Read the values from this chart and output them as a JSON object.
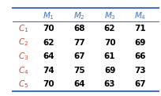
{
  "col_headers": [
    "$M_1$",
    "$M_2$",
    "$M_3$",
    "$M_4$"
  ],
  "row_headers": [
    "$C_1$",
    "$C_2$",
    "$C_3$",
    "$C_4$",
    "$C_5$"
  ],
  "table_data": [
    [
      70,
      68,
      62,
      71
    ],
    [
      62,
      77,
      70,
      69
    ],
    [
      64,
      67,
      61,
      66
    ],
    [
      74,
      75,
      69,
      73
    ],
    [
      70,
      64,
      63,
      67
    ]
  ],
  "header_color": "#4472C4",
  "row_label_color": "#C0504D",
  "data_color": "#000000",
  "top_line_color": "#4472C4",
  "bottom_line_color": "#4472C4",
  "header_line_color": "#4472C4",
  "bg_color": "#FFFFFF",
  "figsize": [
    2.05,
    1.21
  ],
  "dpi": 100
}
